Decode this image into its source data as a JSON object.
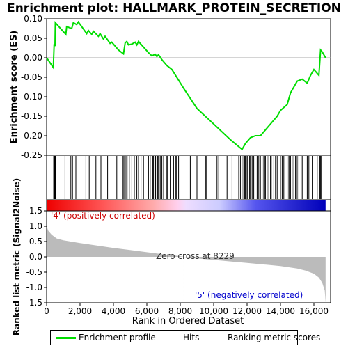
{
  "chart_data": {
    "type": "line",
    "title": "Enrichment plot: HALLMARK_PROTEIN_SECRETION",
    "top_panel": {
      "ylabel": "Enrichment score (ES)",
      "ylim": [
        -0.25,
        0.1
      ],
      "yticks": [
        "0.10",
        "0.05",
        "0.00",
        "-0.05",
        "-0.10",
        "-0.15",
        "-0.20",
        "-0.25"
      ],
      "ytick_values": [
        0.1,
        0.05,
        0.0,
        -0.05,
        -0.1,
        -0.15,
        -0.2,
        -0.25
      ],
      "series_name": "Enrichment profile",
      "series_color": "#00dd00",
      "x": [
        0,
        400,
        450,
        500,
        520,
        1150,
        1200,
        1500,
        1600,
        1800,
        1900,
        2400,
        2500,
        2700,
        2800,
        3100,
        3200,
        3400,
        3500,
        3800,
        3900,
        4300,
        4600,
        4700,
        4800,
        4900,
        5100,
        5300,
        5400,
        5500,
        5600,
        6100,
        6300,
        6500,
        6600,
        6700,
        6900,
        7200,
        7500,
        8229,
        9000,
        10000,
        11000,
        11700,
        11900,
        12200,
        12500,
        12800,
        13000,
        13500,
        13800,
        14000,
        14400,
        14600,
        14800,
        15000,
        15300,
        15600,
        15800,
        16000,
        16300,
        16400,
        16500,
        16700
      ],
      "y": [
        0.0,
        -0.025,
        0.035,
        0.03,
        0.09,
        0.06,
        0.08,
        0.075,
        0.09,
        0.085,
        0.092,
        0.062,
        0.07,
        0.06,
        0.068,
        0.055,
        0.062,
        0.048,
        0.055,
        0.037,
        0.04,
        0.02,
        0.01,
        0.038,
        0.042,
        0.033,
        0.035,
        0.04,
        0.033,
        0.042,
        0.037,
        0.013,
        0.005,
        0.009,
        0.003,
        0.008,
        -0.005,
        -0.02,
        -0.03,
        -0.08,
        -0.13,
        -0.17,
        -0.21,
        -0.235,
        -0.22,
        -0.205,
        -0.2,
        -0.2,
        -0.19,
        -0.165,
        -0.15,
        -0.135,
        -0.12,
        -0.09,
        -0.075,
        -0.06,
        -0.055,
        -0.065,
        -0.045,
        -0.03,
        -0.045,
        0.02,
        0.015,
        0.0
      ]
    },
    "hits": [
      420,
      460,
      500,
      540,
      1100,
      1450,
      1550,
      1750,
      2350,
      2550,
      2950,
      3250,
      3650,
      4200,
      4550,
      4620,
      4680,
      4750,
      4820,
      4950,
      5100,
      5250,
      5400,
      5500,
      5650,
      5800,
      6100,
      6200,
      6350,
      6400,
      6480,
      6520,
      6600,
      6650,
      6700,
      6800,
      6900,
      7000,
      7200,
      7250,
      7400,
      7600,
      7700,
      7750,
      7800,
      7900,
      8600,
      9000,
      9500,
      9550,
      10200,
      10300,
      10800,
      11100,
      11500,
      11600,
      11700,
      11800,
      11850,
      11900,
      12000,
      12050,
      12150,
      12200,
      12300,
      12400,
      12600,
      12700,
      12800,
      12900,
      13000,
      13050,
      13100,
      13200,
      13300,
      13400,
      13450,
      13600,
      13700,
      13800,
      14000,
      14100,
      14200,
      14400,
      14500,
      14550,
      14600,
      14700,
      14800,
      14900,
      15000,
      15100,
      15300,
      15600,
      15700,
      15900,
      16200,
      16350,
      16400,
      16450
    ],
    "ranked_panel": {
      "ylabel": "Ranked list metric (Signal2Noise)",
      "ylim": [
        -1.5,
        1.5
      ],
      "yticks": [
        "1.5",
        "1.0",
        "0.5",
        "0.0",
        "-0.5",
        "-1.0",
        "-1.5"
      ],
      "ytick_values": [
        1.5,
        1.0,
        0.5,
        0.0,
        -0.5,
        -1.0,
        -1.5
      ],
      "x": [
        0,
        100,
        300,
        600,
        1000,
        2000,
        3000,
        4000,
        5000,
        6000,
        7000,
        8000,
        8229,
        9000,
        10000,
        11000,
        12000,
        13000,
        14000,
        15000,
        15500,
        16000,
        16300,
        16500,
        16650,
        16700
      ],
      "values": [
        1.0,
        0.85,
        0.72,
        0.6,
        0.54,
        0.45,
        0.37,
        0.29,
        0.22,
        0.15,
        0.08,
        0.02,
        0.0,
        -0.05,
        -0.1,
        -0.15,
        -0.2,
        -0.25,
        -0.3,
        -0.38,
        -0.45,
        -0.55,
        -0.68,
        -0.85,
        -1.1,
        -1.5
      ],
      "zero_cross_label": "Zero cross at 8229",
      "zero_cross": 8229,
      "pos_label": "'4' (positively correlated)",
      "neg_label": "'5' (negatively correlated)"
    },
    "xlabel": "Rank in Ordered Dataset",
    "xlim": [
      0,
      17000
    ],
    "xticks": [
      "0",
      "2,000",
      "4,000",
      "6,000",
      "8,000",
      "10,000",
      "12,000",
      "14,000",
      "16,000"
    ],
    "xtick_values": [
      0,
      2000,
      4000,
      6000,
      8000,
      10000,
      12000,
      14000,
      16000
    ],
    "n_genes": 16700
  },
  "legend": {
    "items": [
      {
        "label": "Enrichment profile",
        "color": "#00dd00"
      },
      {
        "label": "Hits",
        "color": "#000000"
      },
      {
        "label": "Ranking metric scores",
        "color": "#bbbbbb"
      }
    ]
  }
}
